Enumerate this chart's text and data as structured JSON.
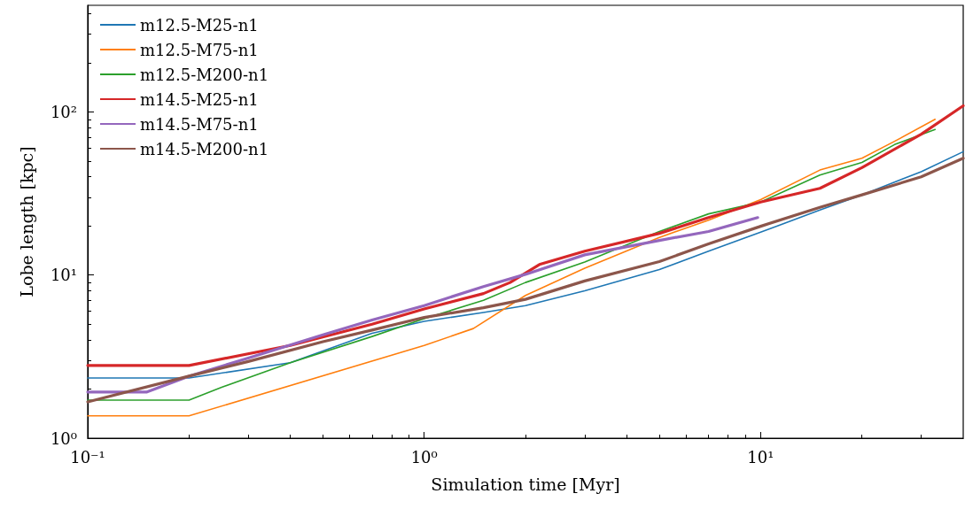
{
  "chart_data": {
    "type": "line",
    "xlabel": "Simulation time [Myr]",
    "ylabel": "Lobe length [kpc]",
    "log": "xy",
    "xlim": [
      0.1,
      40
    ],
    "ylim": [
      1,
      450
    ],
    "xticks": [
      {
        "value": 0.1,
        "label": "10⁻¹"
      },
      {
        "value": 1,
        "label": "10⁰"
      },
      {
        "value": 10,
        "label": "10¹"
      }
    ],
    "yticks": [
      {
        "value": 1,
        "label": "10⁰"
      },
      {
        "value": 10,
        "label": "10¹"
      },
      {
        "value": 100,
        "label": "10²"
      }
    ],
    "grid": false,
    "legend": "top left",
    "marker": "none",
    "line_style": "solid",
    "series": [
      {
        "name": "m12.5-M25-n1",
        "color": "#1f77b4",
        "x": [
          0.1,
          0.2,
          0.4,
          0.7,
          1,
          1.5,
          2,
          3,
          5,
          7,
          10,
          15,
          20,
          30,
          40
        ],
        "values": [
          2.34,
          2.34,
          2.9,
          4.4,
          5.2,
          5.9,
          6.5,
          8,
          10.8,
          14,
          18.3,
          25,
          31,
          43,
          57
        ]
      },
      {
        "name": "m12.5-M75-n1",
        "color": "#ff7f0e",
        "x": [
          0.1,
          0.2,
          1,
          1.4,
          2,
          3,
          5,
          7,
          10,
          15,
          20,
          25,
          33
        ],
        "values": [
          1.37,
          1.37,
          3.7,
          4.7,
          7.5,
          11,
          17,
          21.7,
          29,
          44,
          52,
          66,
          90
        ]
      },
      {
        "name": "m12.5-M200-n1",
        "color": "#2ca02c",
        "x": [
          0.1,
          0.2,
          0.25,
          0.4,
          0.7,
          1,
          1.5,
          2,
          3,
          5,
          7,
          10,
          15,
          20,
          25,
          33
        ],
        "values": [
          1.71,
          1.71,
          2.05,
          2.9,
          4.2,
          5.4,
          7,
          9,
          12,
          18.5,
          23.7,
          28,
          41,
          49,
          63,
          78
        ]
      },
      {
        "name": "m14.5-M25-n1",
        "color": "#d62728",
        "x": [
          0.1,
          0.2,
          0.4,
          0.7,
          1,
          1.5,
          1.8,
          2.2,
          3,
          5,
          7,
          10,
          15,
          20,
          30,
          40
        ],
        "values": [
          2.79,
          2.79,
          3.7,
          5,
          6.2,
          7.7,
          9,
          11.6,
          14,
          18,
          22.5,
          28,
          34,
          45.5,
          73,
          109
        ]
      },
      {
        "name": "m14.5-M75-n1",
        "color": "#9467bd",
        "x": [
          0.1,
          0.15,
          0.2,
          0.3,
          0.5,
          0.7,
          1,
          1.5,
          2,
          3,
          5,
          7,
          9.8
        ],
        "values": [
          1.92,
          1.92,
          2.4,
          3.1,
          4.3,
          5.3,
          6.5,
          8.5,
          10.1,
          13.3,
          16.3,
          18.5,
          22.5
        ]
      },
      {
        "name": "m14.5-M200-n1",
        "color": "#8c564b",
        "x": [
          0.1,
          0.2,
          0.3,
          0.5,
          0.7,
          1,
          1.5,
          2,
          3,
          5,
          7,
          10,
          15,
          20,
          30,
          40
        ],
        "values": [
          1.67,
          2.4,
          2.95,
          3.9,
          4.6,
          5.5,
          6.3,
          7.1,
          9.2,
          12.1,
          15.5,
          19.9,
          26,
          31,
          40,
          52
        ]
      }
    ]
  }
}
